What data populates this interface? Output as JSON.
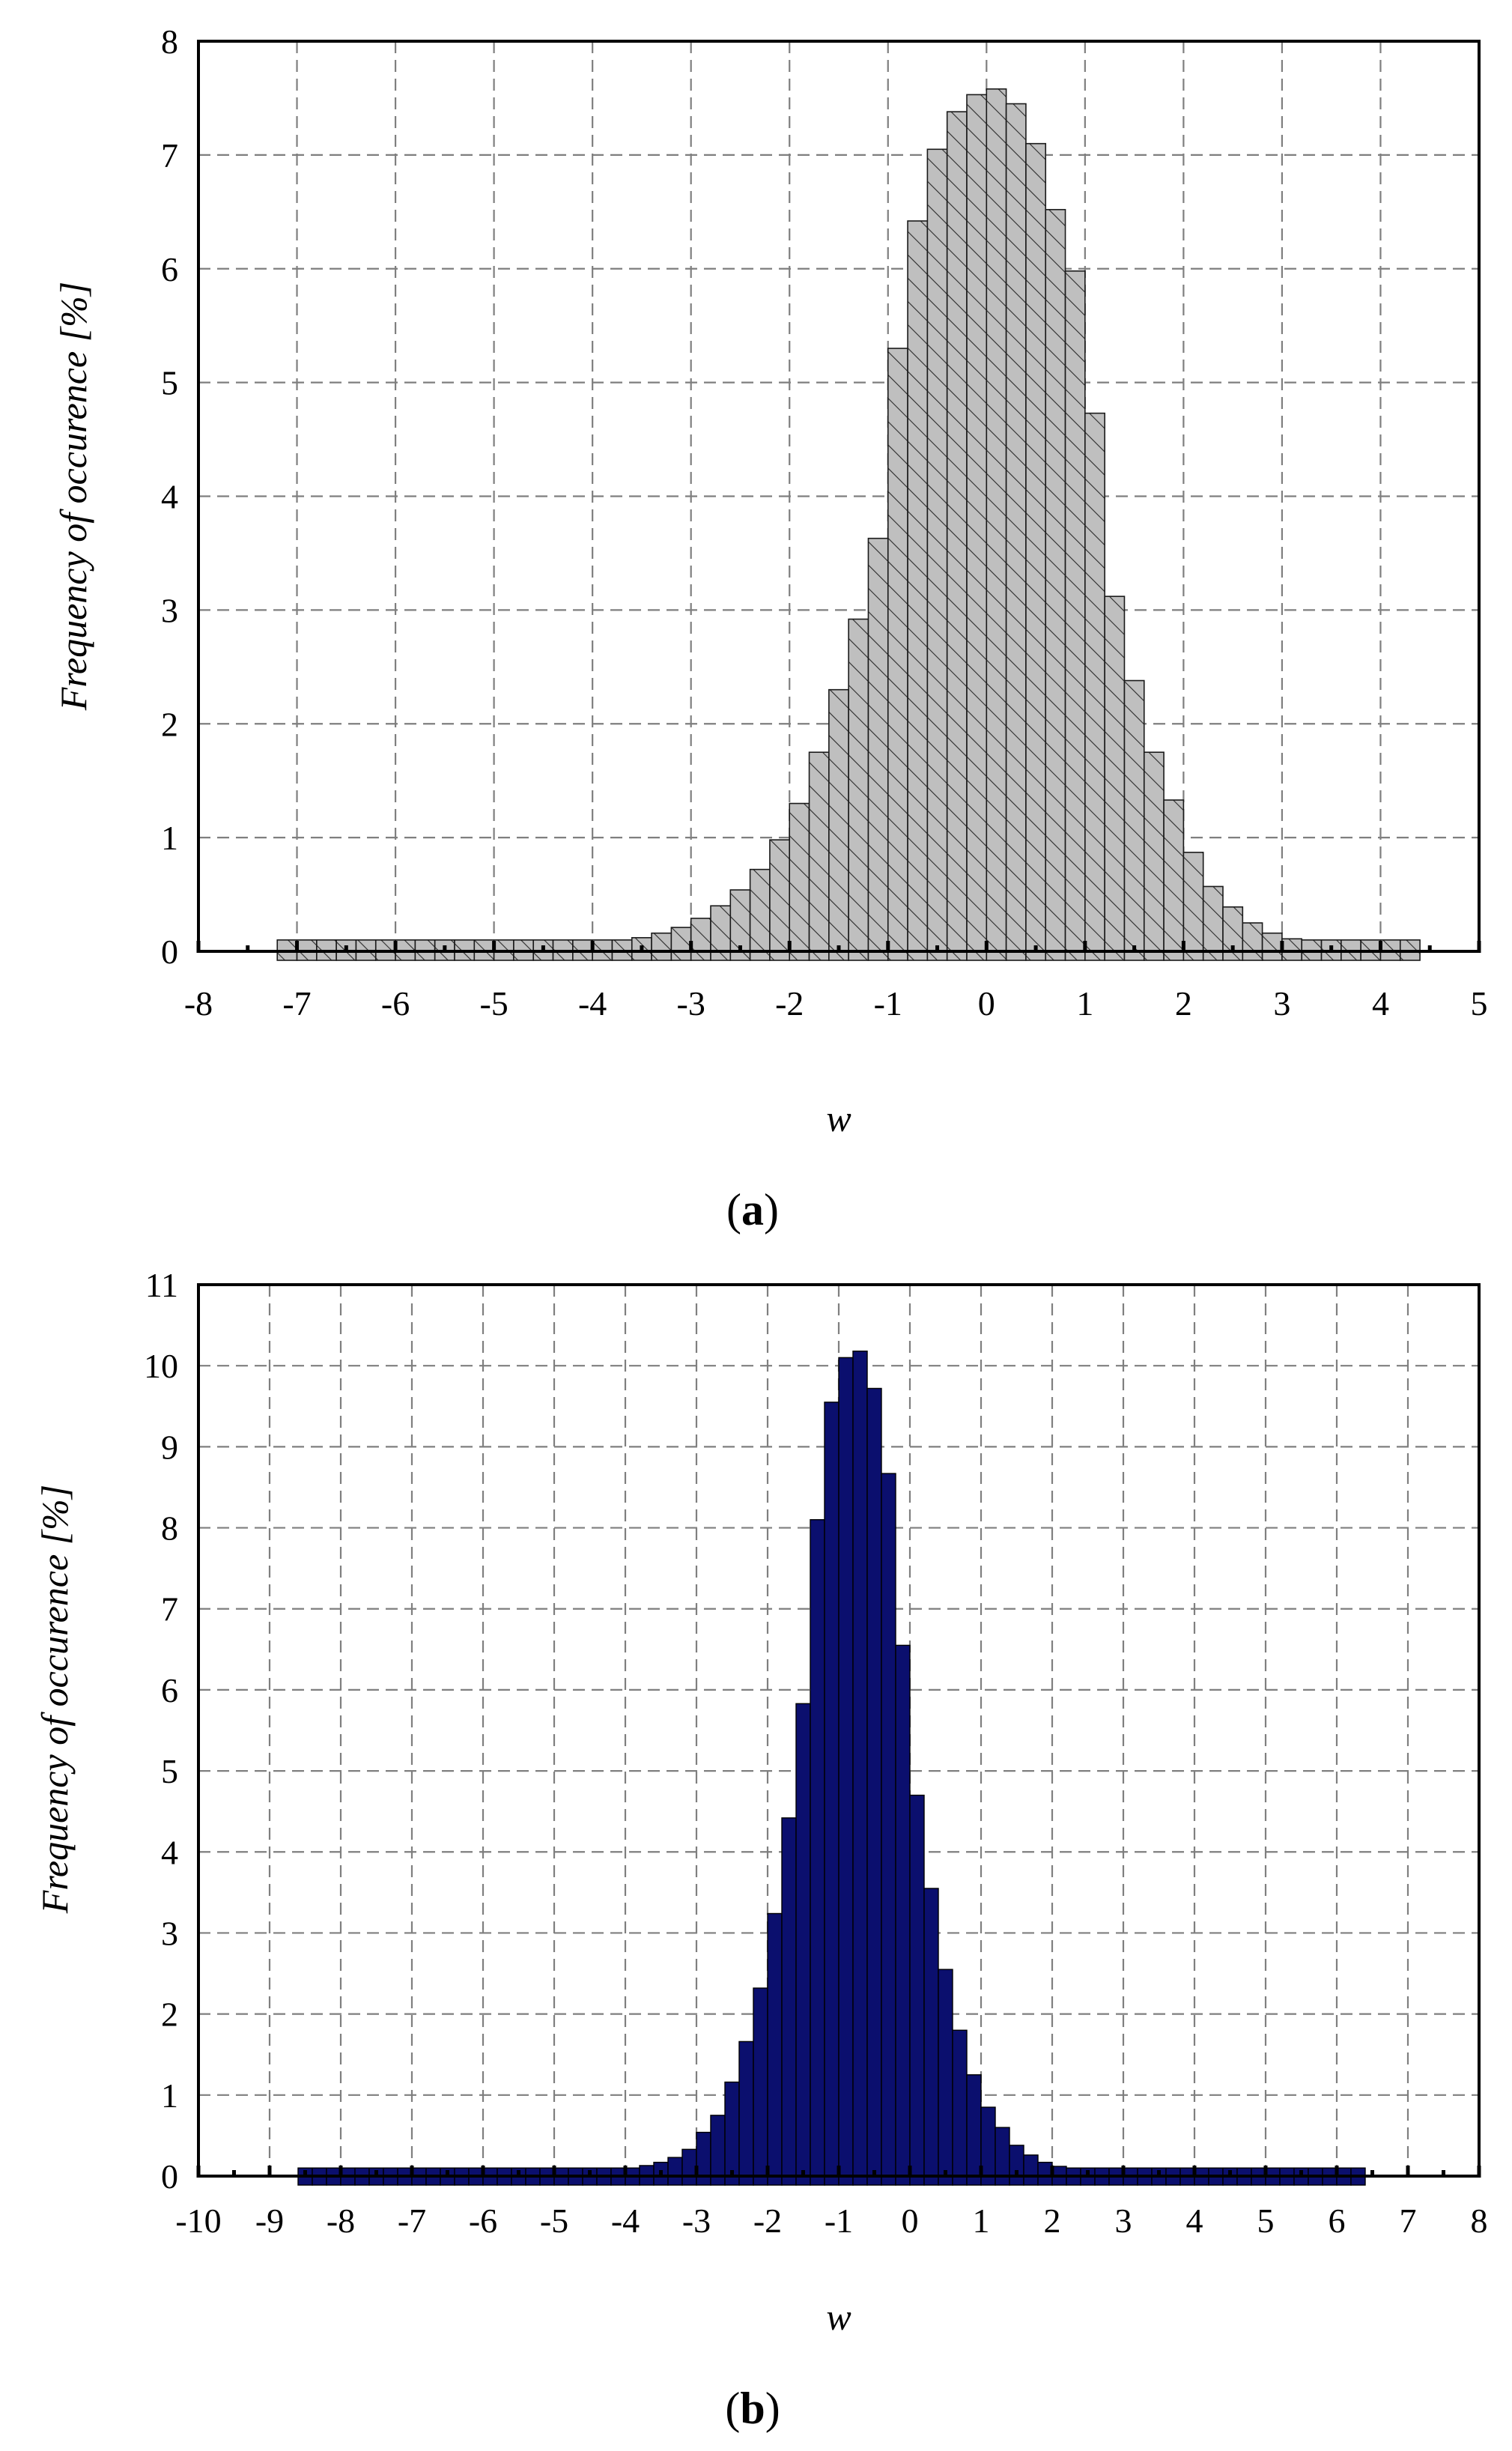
{
  "chart_data": [
    {
      "type": "bar",
      "panel_label": "(a)",
      "panel_letter": "a",
      "xlabel": "w",
      "ylabel": "Frequency of occurence [%]",
      "xlim": [
        -8,
        5
      ],
      "ylim": [
        0,
        8
      ],
      "xticks": [
        -8,
        -7,
        -6,
        -5,
        -4,
        -3,
        -2,
        -1,
        0,
        1,
        2,
        3,
        4,
        5
      ],
      "yticks": [
        0,
        1,
        2,
        3,
        4,
        5,
        6,
        7,
        8
      ],
      "grid": true,
      "bar_color": "#bfbfbf",
      "bar_pattern": "hatched",
      "bin_width": 0.2,
      "x": [
        -7.1,
        -6.9,
        -6.7,
        -6.5,
        -6.3,
        -6.1,
        -5.9,
        -5.7,
        -5.5,
        -5.3,
        -5.1,
        -4.9,
        -4.7,
        -4.5,
        -4.3,
        -4.1,
        -3.9,
        -3.7,
        -3.5,
        -3.3,
        -3.1,
        -2.9,
        -2.7,
        -2.5,
        -2.3,
        -2.1,
        -1.9,
        -1.7,
        -1.5,
        -1.3,
        -1.1,
        -0.9,
        -0.7,
        -0.5,
        -0.3,
        -0.1,
        0.1,
        0.3,
        0.5,
        0.7,
        0.9,
        1.1,
        1.3,
        1.5,
        1.7,
        1.9,
        2.1,
        2.3,
        2.5,
        2.7,
        2.9,
        3.1,
        3.3,
        3.5,
        3.7,
        3.9,
        4.1,
        4.3
      ],
      "values": [
        0.01,
        0.01,
        0.01,
        0.01,
        0.01,
        0.01,
        0.01,
        0.02,
        0.02,
        0.02,
        0.02,
        0.03,
        0.03,
        0.04,
        0.05,
        0.06,
        0.08,
        0.1,
        0.12,
        0.16,
        0.21,
        0.29,
        0.4,
        0.54,
        0.72,
        0.98,
        1.3,
        1.75,
        2.3,
        2.92,
        3.63,
        5.3,
        6.42,
        7.05,
        7.38,
        7.53,
        7.58,
        7.45,
        7.1,
        6.52,
        5.98,
        4.73,
        3.12,
        2.38,
        1.75,
        1.33,
        0.87,
        0.57,
        0.39,
        0.25,
        0.16,
        0.11,
        0.08,
        0.06,
        0.04,
        0.03,
        0.02,
        0.02
      ]
    },
    {
      "type": "bar",
      "panel_label": "(b)",
      "panel_letter": "b",
      "xlabel": "w",
      "ylabel": "Frequency of occurence [%]",
      "xlim": [
        -10,
        8
      ],
      "ylim": [
        0,
        11
      ],
      "xticks": [
        -10,
        -9,
        -8,
        -7,
        -6,
        -5,
        -4,
        -3,
        -2,
        -1,
        0,
        1,
        2,
        3,
        4,
        5,
        6,
        7,
        8
      ],
      "yticks": [
        0,
        1,
        2,
        3,
        4,
        5,
        6,
        7,
        8,
        9,
        10,
        11
      ],
      "grid": true,
      "bar_color": "#0b0f6e",
      "bin_width": 0.2,
      "x": [
        -8.5,
        -8.3,
        -8.1,
        -7.9,
        -7.7,
        -7.5,
        -7.3,
        -7.1,
        -6.9,
        -6.7,
        -6.5,
        -6.3,
        -6.1,
        -5.9,
        -5.7,
        -5.5,
        -5.3,
        -5.1,
        -4.9,
        -4.7,
        -4.5,
        -4.3,
        -4.1,
        -3.9,
        -3.7,
        -3.5,
        -3.3,
        -3.1,
        -2.9,
        -2.7,
        -2.5,
        -2.3,
        -2.1,
        -1.9,
        -1.7,
        -1.5,
        -1.3,
        -1.1,
        -0.9,
        -0.7,
        -0.5,
        -0.3,
        -0.1,
        0.1,
        0.3,
        0.5,
        0.7,
        0.9,
        1.1,
        1.3,
        1.5,
        1.7,
        1.9,
        2.1,
        2.3,
        2.5,
        2.7,
        2.9,
        3.1,
        3.3,
        3.5,
        3.7,
        3.9,
        4.1,
        4.3,
        4.5,
        4.7,
        4.9,
        5.1,
        5.3,
        5.5,
        5.7,
        5.9,
        6.1,
        6.3
      ],
      "values": [
        0.01,
        0.01,
        0.01,
        0.01,
        0.01,
        0.01,
        0.01,
        0.01,
        0.01,
        0.01,
        0.01,
        0.01,
        0.01,
        0.01,
        0.01,
        0.02,
        0.02,
        0.02,
        0.02,
        0.03,
        0.04,
        0.05,
        0.07,
        0.1,
        0.13,
        0.17,
        0.23,
        0.33,
        0.54,
        0.75,
        1.16,
        1.66,
        2.32,
        3.24,
        4.42,
        5.83,
        8.1,
        9.55,
        10.1,
        10.18,
        9.72,
        8.67,
        6.55,
        4.7,
        3.55,
        2.55,
        1.8,
        1.25,
        0.85,
        0.6,
        0.38,
        0.26,
        0.17,
        0.12,
        0.09,
        0.07,
        0.05,
        0.04,
        0.03,
        0.03,
        0.02,
        0.02,
        0.02,
        0.01,
        0.01,
        0.01,
        0.01,
        0.01,
        0.01,
        0.01,
        0.01,
        0.01,
        0.01,
        0.01,
        0.01
      ]
    }
  ]
}
